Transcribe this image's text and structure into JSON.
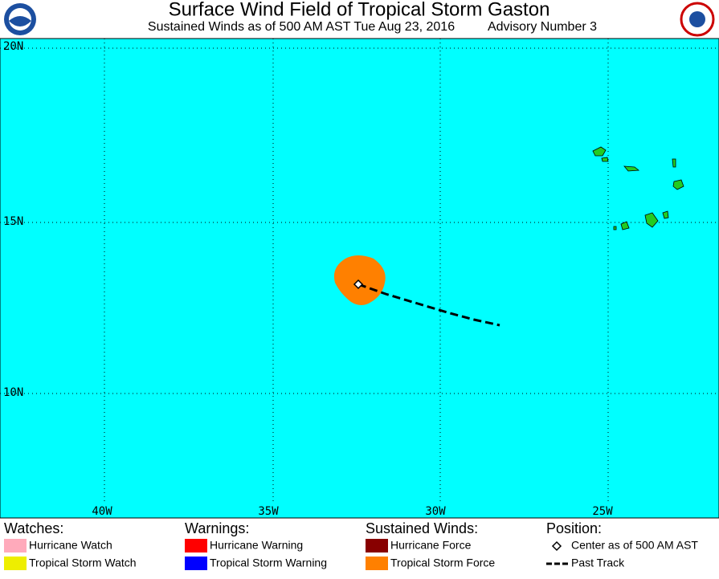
{
  "header": {
    "title": "Surface Wind Field of Tropical Storm Gaston",
    "subtitle": "Sustained Winds as of 500 AM AST Tue Aug 23, 2016",
    "advisory": "Advisory Number 3"
  },
  "map": {
    "lat_labels": [
      "20N",
      "15N",
      "10N"
    ],
    "lon_labels": [
      "40W",
      "35W",
      "30W",
      "25W"
    ]
  },
  "legend": [
    {
      "heading": "Watches:",
      "items": [
        "Hurricane Watch",
        "Tropical Storm Watch"
      ]
    },
    {
      "heading": "Warnings:",
      "items": [
        "Hurricane Warning",
        "Tropical Storm Warning"
      ]
    },
    {
      "heading": "Sustained Winds:",
      "items": [
        "Hurricane Force",
        "Tropical Storm Force"
      ]
    },
    {
      "heading": "Position:",
      "items": [
        "Center as of 500 AM AST",
        "Past Track"
      ]
    }
  ]
}
